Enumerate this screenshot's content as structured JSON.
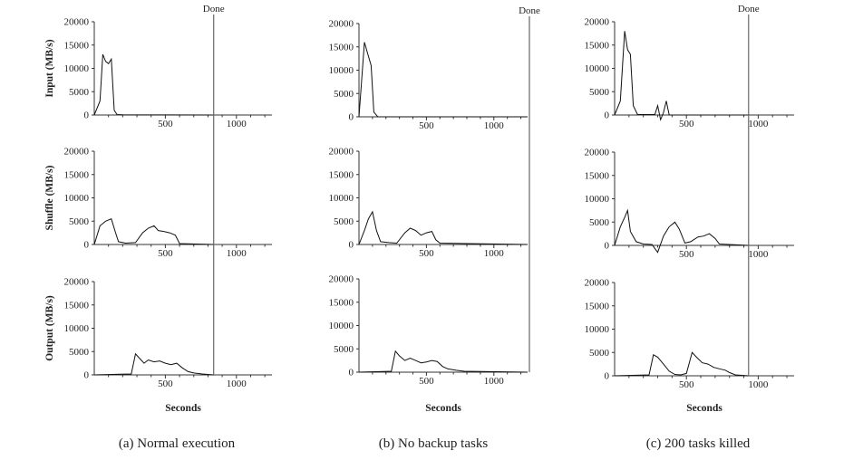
{
  "chart_data": [
    {
      "type": "line",
      "caption": "(a) Normal execution",
      "done_label": "Done",
      "done_x": 840,
      "xlabel": "Seconds",
      "xlim": [
        0,
        1250
      ],
      "x_ticks": [
        500,
        1000
      ],
      "ylim": [
        0,
        20000
      ],
      "y_ticks": [
        0,
        5000,
        10000,
        15000,
        20000
      ],
      "series": [
        {
          "ylabel": "Input (MB/s)",
          "points": [
            [
              0,
              0
            ],
            [
              40,
              3000
            ],
            [
              60,
              13000
            ],
            [
              80,
              11500
            ],
            [
              100,
              11000
            ],
            [
              120,
              12000
            ],
            [
              140,
              1000
            ],
            [
              160,
              100
            ],
            [
              200,
              50
            ],
            [
              840,
              0
            ]
          ]
        },
        {
          "ylabel": "Shuffle (MB/s)",
          "points": [
            [
              0,
              0
            ],
            [
              40,
              4000
            ],
            [
              80,
              5000
            ],
            [
              120,
              5500
            ],
            [
              150,
              2500
            ],
            [
              170,
              600
            ],
            [
              220,
              300
            ],
            [
              290,
              400
            ],
            [
              340,
              2500
            ],
            [
              380,
              3500
            ],
            [
              420,
              4000
            ],
            [
              450,
              3000
            ],
            [
              490,
              2800
            ],
            [
              530,
              2500
            ],
            [
              570,
              2000
            ],
            [
              600,
              200
            ],
            [
              840,
              0
            ]
          ]
        },
        {
          "ylabel": "Output (MB/s)",
          "points": [
            [
              0,
              0
            ],
            [
              260,
              200
            ],
            [
              290,
              4500
            ],
            [
              320,
              3500
            ],
            [
              350,
              2500
            ],
            [
              380,
              3200
            ],
            [
              420,
              2800
            ],
            [
              460,
              3000
            ],
            [
              500,
              2500
            ],
            [
              540,
              2200
            ],
            [
              580,
              2500
            ],
            [
              620,
              1500
            ],
            [
              660,
              700
            ],
            [
              700,
              400
            ],
            [
              760,
              200
            ],
            [
              840,
              0
            ]
          ]
        }
      ]
    },
    {
      "type": "line",
      "caption": "(b) No backup tasks",
      "done_label": "Done",
      "done_x": 1283,
      "xlabel": "Seconds",
      "xlim": [
        0,
        1250
      ],
      "x_ticks": [
        500,
        1000
      ],
      "ylim": [
        0,
        20000
      ],
      "y_ticks": [
        0,
        5000,
        10000,
        15000,
        20000
      ],
      "series": [
        {
          "ylabel": "",
          "points": [
            [
              0,
              0
            ],
            [
              40,
              16000
            ],
            [
              70,
              13000
            ],
            [
              90,
              11000
            ],
            [
              110,
              1000
            ],
            [
              140,
              0
            ],
            [
              1283,
              0
            ]
          ]
        },
        {
          "ylabel": "",
          "points": [
            [
              0,
              0
            ],
            [
              40,
              3000
            ],
            [
              70,
              5500
            ],
            [
              100,
              7000
            ],
            [
              130,
              3000
            ],
            [
              160,
              600
            ],
            [
              220,
              400
            ],
            [
              280,
              300
            ],
            [
              340,
              2500
            ],
            [
              380,
              3500
            ],
            [
              420,
              3000
            ],
            [
              460,
              2000
            ],
            [
              500,
              2500
            ],
            [
              540,
              2800
            ],
            [
              570,
              1000
            ],
            [
              600,
              300
            ],
            [
              1283,
              0
            ]
          ]
        },
        {
          "ylabel": "",
          "points": [
            [
              0,
              0
            ],
            [
              240,
              200
            ],
            [
              270,
              4500
            ],
            [
              300,
              3500
            ],
            [
              340,
              2500
            ],
            [
              380,
              3000
            ],
            [
              420,
              2500
            ],
            [
              460,
              2000
            ],
            [
              500,
              2200
            ],
            [
              540,
              2500
            ],
            [
              580,
              2300
            ],
            [
              620,
              1200
            ],
            [
              660,
              700
            ],
            [
              720,
              400
            ],
            [
              780,
              200
            ],
            [
              1283,
              0
            ]
          ]
        }
      ]
    },
    {
      "type": "line",
      "caption": "(c) 200 tasks killed",
      "done_label": "Done",
      "done_x": 933,
      "xlabel": "Seconds",
      "xlim": [
        0,
        1250
      ],
      "x_ticks": [
        500,
        1000
      ],
      "ylim": [
        0,
        20000
      ],
      "y_ticks": [
        0,
        5000,
        10000,
        15000,
        20000
      ],
      "series": [
        {
          "ylabel": "",
          "points": [
            [
              0,
              0
            ],
            [
              40,
              3000
            ],
            [
              70,
              18000
            ],
            [
              90,
              14000
            ],
            [
              110,
              13000
            ],
            [
              130,
              2000
            ],
            [
              160,
              100
            ],
            [
              280,
              100
            ],
            [
              300,
              2000
            ],
            [
              320,
              -1000
            ],
            [
              340,
              500
            ],
            [
              360,
              3000
            ],
            [
              380,
              0
            ],
            [
              933,
              0
            ]
          ]
        },
        {
          "ylabel": "",
          "points": [
            [
              0,
              0
            ],
            [
              40,
              4000
            ],
            [
              70,
              6000
            ],
            [
              90,
              7500
            ],
            [
              110,
              3000
            ],
            [
              150,
              800
            ],
            [
              200,
              300
            ],
            [
              260,
              200
            ],
            [
              300,
              -1500
            ],
            [
              340,
              2000
            ],
            [
              380,
              4000
            ],
            [
              420,
              5000
            ],
            [
              450,
              3500
            ],
            [
              490,
              500
            ],
            [
              530,
              800
            ],
            [
              580,
              1800
            ],
            [
              620,
              2000
            ],
            [
              660,
              2500
            ],
            [
              700,
              1500
            ],
            [
              730,
              300
            ],
            [
              933,
              0
            ]
          ]
        },
        {
          "ylabel": "",
          "points": [
            [
              0,
              0
            ],
            [
              240,
              200
            ],
            [
              270,
              4500
            ],
            [
              300,
              4000
            ],
            [
              340,
              2500
            ],
            [
              380,
              1000
            ],
            [
              420,
              300
            ],
            [
              460,
              200
            ],
            [
              500,
              500
            ],
            [
              540,
              5000
            ],
            [
              570,
              4000
            ],
            [
              610,
              2800
            ],
            [
              650,
              2500
            ],
            [
              690,
              1800
            ],
            [
              730,
              1500
            ],
            [
              770,
              1200
            ],
            [
              800,
              700
            ],
            [
              840,
              200
            ],
            [
              933,
              0
            ]
          ]
        }
      ]
    }
  ]
}
